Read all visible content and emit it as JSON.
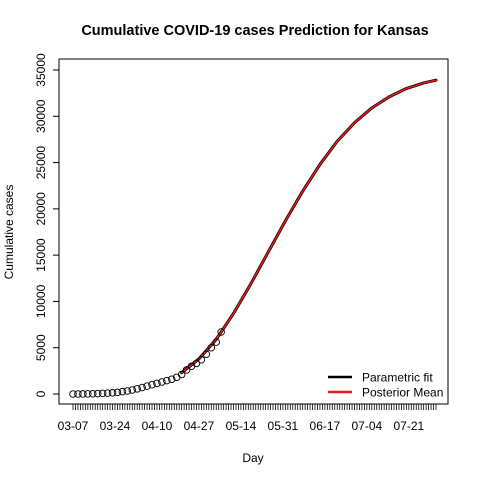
{
  "chart_data": {
    "type": "line",
    "title": "Cumulative COVID-19 cases Prediction for Kansas",
    "xlabel": "Day",
    "ylabel": "Cumulative cases",
    "x_start": "2020-03-07",
    "x_end": "2020-08-01",
    "ylim": [
      0,
      35000
    ],
    "yticks": [
      0,
      5000,
      10000,
      15000,
      20000,
      25000,
      30000,
      35000
    ],
    "xticks": [
      "03-07",
      "03-24",
      "04-10",
      "04-27",
      "05-14",
      "05-31",
      "06-17",
      "07-04",
      "07-21"
    ],
    "grid": false,
    "legend_position": "bottom-right",
    "legend": [
      {
        "name": "Parametric fit",
        "color": "#000000"
      },
      {
        "name": "Posterior Mean",
        "color": "#e41a1c"
      }
    ],
    "observed": {
      "marker": "open-circle",
      "x": [
        "2020-03-07",
        "2020-03-09",
        "2020-03-11",
        "2020-03-13",
        "2020-03-15",
        "2020-03-17",
        "2020-03-19",
        "2020-03-21",
        "2020-03-23",
        "2020-03-25",
        "2020-03-27",
        "2020-03-29",
        "2020-03-31",
        "2020-04-02",
        "2020-04-04",
        "2020-04-06",
        "2020-04-08",
        "2020-04-10",
        "2020-04-12",
        "2020-04-14",
        "2020-04-16",
        "2020-04-18",
        "2020-04-20",
        "2020-04-22",
        "2020-04-24",
        "2020-04-26",
        "2020-04-28",
        "2020-04-30",
        "2020-05-02",
        "2020-05-04",
        "2020-05-06"
      ],
      "y": [
        1,
        3,
        8,
        15,
        25,
        45,
        70,
        95,
        130,
        180,
        250,
        330,
        430,
        560,
        700,
        850,
        1000,
        1150,
        1300,
        1450,
        1600,
        1800,
        2100,
        2600,
        3000,
        3300,
        3700,
        4300,
        5000,
        5600,
        6700
      ]
    },
    "series": [
      {
        "name": "Parametric fit",
        "color": "#000000",
        "x": [
          "2020-04-20",
          "2020-04-27",
          "2020-05-04",
          "2020-05-11",
          "2020-05-18",
          "2020-05-25",
          "2020-06-01",
          "2020-06-08",
          "2020-06-15",
          "2020-06-22",
          "2020-06-29",
          "2020-07-06",
          "2020-07-13",
          "2020-07-20",
          "2020-07-27",
          "2020-08-01"
        ],
        "y": [
          2300,
          3800,
          5900,
          8700,
          11900,
          15300,
          18700,
          21900,
          24800,
          27300,
          29300,
          30900,
          32100,
          33000,
          33600,
          33900
        ]
      },
      {
        "name": "Posterior Mean",
        "color": "#e41a1c",
        "x": [
          "2020-04-20",
          "2020-04-27",
          "2020-05-04",
          "2020-05-11",
          "2020-05-18",
          "2020-05-25",
          "2020-06-01",
          "2020-06-08",
          "2020-06-15",
          "2020-06-22",
          "2020-06-29",
          "2020-07-06",
          "2020-07-13",
          "2020-07-20",
          "2020-07-27",
          "2020-08-01"
        ],
        "y": [
          2300,
          3800,
          5900,
          8700,
          11900,
          15300,
          18700,
          21900,
          24800,
          27300,
          29300,
          30900,
          32100,
          33000,
          33600,
          33900
        ]
      }
    ]
  }
}
